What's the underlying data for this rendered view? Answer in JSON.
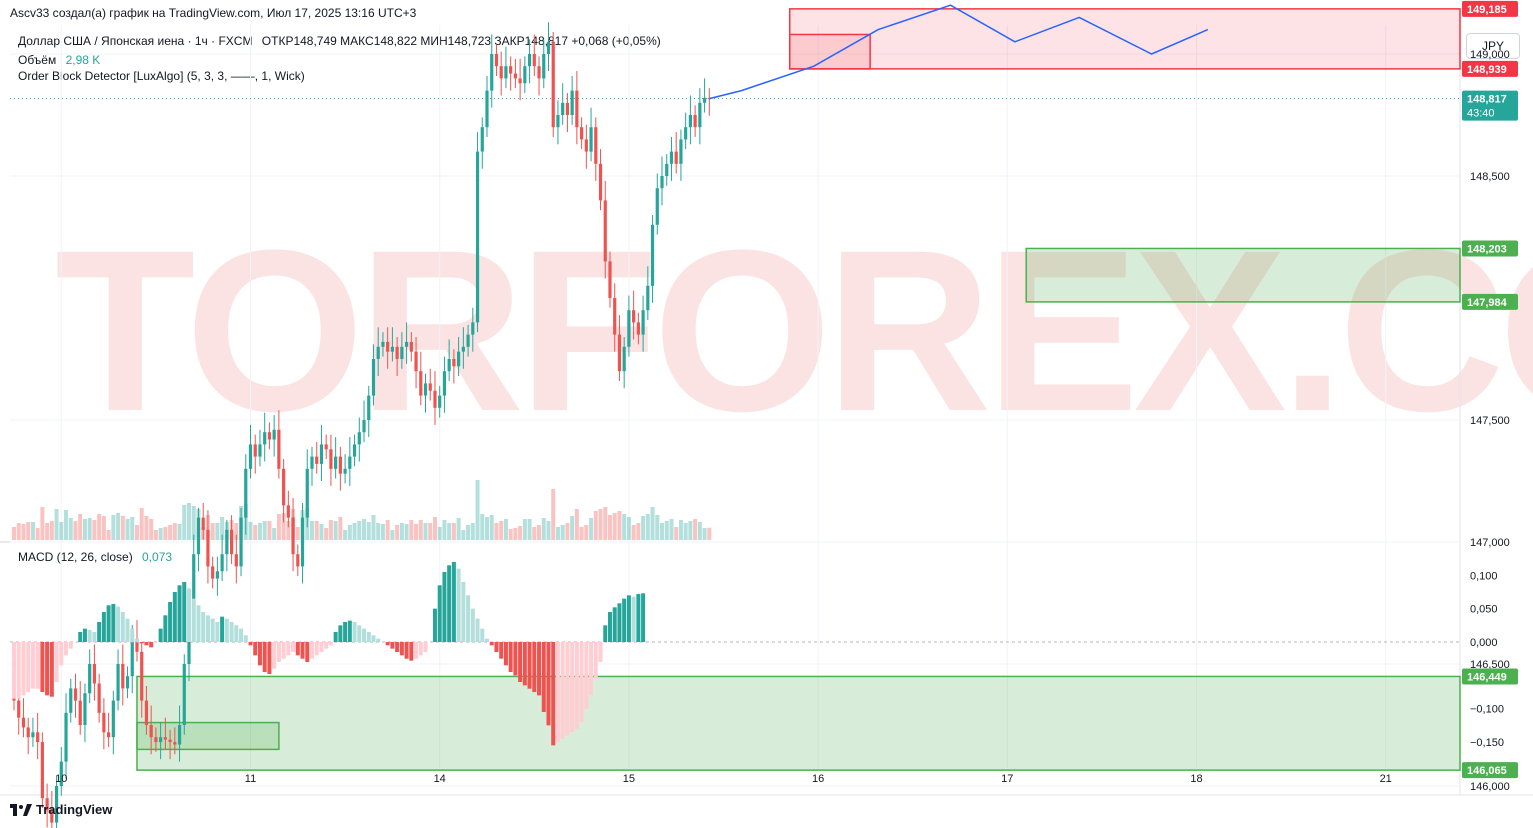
{
  "header": {
    "published": "Ascv33 создал(а) график на TradingView.com, Июл 17, 2025 13:16 UTC+3",
    "symbol": "Доллар США / Японская иена · 1ч · FXCM",
    "ohlc": "ОТКР148,749  МАКС148,822  МИН148,723  ЗАКР148,817  +0,068 (+0,05%)",
    "volume_label": "Объём",
    "volume_value": "2,98 K",
    "indicator": "Order Block Detector [LuxAlgo] (5, 3, 3, ——, 1, Wick)",
    "currency": "JPY"
  },
  "macd": {
    "label": "MACD (12, 26, close)",
    "value": "0,073"
  },
  "watermark": "TORFOREX.COM",
  "brand": "TradingView",
  "colors": {
    "up": "#26a69a",
    "down": "#ef5350",
    "up_light": "#b2dfdb",
    "down_light": "#ffcdd2",
    "forecast": "#2962ff",
    "resist": "#f23645",
    "support": "#4caf50"
  },
  "chart_data": {
    "type": "candlestick",
    "x_ticks": [
      "10",
      "11",
      "14",
      "15",
      "16",
      "17",
      "18",
      "21"
    ],
    "x_tick_index": [
      10,
      50,
      90,
      130,
      170,
      210,
      250,
      290
    ],
    "y_ticks": [
      {
        "v": 149.0,
        "t": "149,000"
      },
      {
        "v": 148.5,
        "t": "148,500"
      },
      {
        "v": 147.5,
        "t": "147,500"
      },
      {
        "v": 147.0,
        "t": "147,000"
      },
      {
        "v": 146.5,
        "t": "146,500"
      },
      {
        "v": 146.0,
        "t": "146,000"
      }
    ],
    "price_labels": [
      {
        "v": 149.185,
        "t": "149,185",
        "kind": "resist"
      },
      {
        "v": 148.939,
        "t": "148,939",
        "kind": "resist"
      },
      {
        "v": 148.817,
        "t": "148,817",
        "sub": "43:40",
        "kind": "last"
      },
      {
        "v": 148.203,
        "t": "148,203",
        "kind": "support"
      },
      {
        "v": 147.984,
        "t": "147,984",
        "kind": "support"
      },
      {
        "v": 146.449,
        "t": "146,449",
        "kind": "support"
      },
      {
        "v": 146.065,
        "t": "146,065",
        "kind": "support"
      }
    ],
    "order_blocks": [
      {
        "type": "bearish",
        "top": 149.185,
        "bottom": 148.939,
        "from": 164,
        "to": 310
      },
      {
        "type": "bearish",
        "top": 149.08,
        "bottom": 148.939,
        "from": 164,
        "to": 181
      },
      {
        "type": "bullish",
        "top": 148.203,
        "bottom": 147.984,
        "from": 214,
        "to": 310
      },
      {
        "type": "bullish",
        "top": 146.449,
        "bottom": 146.065,
        "from": 26,
        "to": 310
      },
      {
        "type": "bullish",
        "top": 146.26,
        "bottom": 146.15,
        "from": 26,
        "to": 56
      }
    ],
    "close": [
      146.35,
      146.28,
      146.24,
      146.2,
      146.22,
      146.18,
      145.95,
      145.9,
      145.85,
      146.0,
      146.1,
      146.3,
      146.4,
      146.35,
      146.25,
      146.38,
      146.5,
      146.42,
      146.3,
      146.22,
      146.2,
      146.35,
      146.5,
      146.4,
      146.45,
      146.6,
      146.55,
      146.35,
      146.25,
      146.2,
      146.18,
      146.2,
      146.19,
      146.18,
      146.17,
      146.25,
      146.5,
      146.75,
      146.95,
      147.1,
      147.05,
      146.9,
      146.85,
      146.88,
      146.95,
      147.05,
      146.95,
      146.9,
      147.1,
      147.3,
      147.4,
      147.35,
      147.4,
      147.45,
      147.42,
      147.46,
      147.3,
      147.15,
      147.1,
      146.95,
      146.9,
      147.1,
      147.3,
      147.35,
      147.32,
      147.4,
      147.38,
      147.3,
      147.35,
      147.28,
      147.3,
      147.35,
      147.4,
      147.45,
      147.5,
      147.6,
      147.75,
      147.8,
      147.82,
      147.78,
      147.8,
      147.75,
      147.8,
      147.82,
      147.78,
      147.7,
      147.6,
      147.65,
      147.62,
      147.55,
      147.6,
      147.7,
      147.75,
      147.72,
      147.78,
      147.8,
      147.85,
      147.9,
      148.6,
      148.7,
      148.85,
      149.0,
      148.95,
      148.9,
      148.95,
      148.92,
      148.9,
      148.88,
      148.95,
      149.0,
      148.95,
      148.9,
      149.0,
      149.05,
      148.7,
      148.75,
      148.8,
      148.75,
      148.85,
      148.7,
      148.65,
      148.6,
      148.7,
      148.55,
      148.4,
      148.15,
      148.0,
      147.85,
      147.7,
      147.8,
      147.95,
      147.9,
      147.85,
      147.95,
      148.05,
      148.3,
      148.45,
      148.5,
      148.55,
      148.6,
      148.55,
      148.65,
      148.7,
      148.75,
      148.7,
      148.8,
      148.82,
      148.817
    ],
    "macd_hist": [
      -0.085,
      -0.085,
      -0.08,
      -0.075,
      -0.07,
      -0.07,
      -0.075,
      -0.08,
      -0.082,
      -0.06,
      -0.035,
      -0.02,
      -0.01,
      0.0,
      0.015,
      0.02,
      0.018,
      0.015,
      0.03,
      0.045,
      0.055,
      0.057,
      0.053,
      0.045,
      0.035,
      0.02,
      0.005,
      -0.002,
      -0.005,
      -0.008,
      0.0,
      0.02,
      0.04,
      0.06,
      0.075,
      0.085,
      0.09,
      0.08,
      0.065,
      0.055,
      0.045,
      0.04,
      0.035,
      0.03,
      0.038,
      0.035,
      0.03,
      0.025,
      0.02,
      0.01,
      -0.005,
      -0.02,
      -0.035,
      -0.045,
      -0.048,
      -0.04,
      -0.03,
      -0.025,
      -0.02,
      -0.015,
      -0.02,
      -0.025,
      -0.03,
      -0.025,
      -0.02,
      -0.015,
      -0.01,
      -0.005,
      0.015,
      0.025,
      0.03,
      0.032,
      0.03,
      0.025,
      0.02,
      0.015,
      0.01,
      0.005,
      0.0,
      -0.005,
      -0.01,
      -0.015,
      -0.02,
      -0.025,
      -0.028,
      -0.025,
      -0.02,
      -0.015,
      0.0,
      0.05,
      0.085,
      0.105,
      0.115,
      0.12,
      0.11,
      0.09,
      0.07,
      0.05,
      0.035,
      0.02,
      0.005,
      -0.005,
      -0.015,
      -0.025,
      -0.035,
      -0.045,
      -0.05,
      -0.06,
      -0.065,
      -0.07,
      -0.075,
      -0.08,
      -0.105,
      -0.125,
      -0.155,
      -0.15,
      -0.145,
      -0.14,
      -0.135,
      -0.13,
      -0.12,
      -0.1,
      -0.08,
      -0.055,
      -0.03,
      0.025,
      0.045,
      0.052,
      0.058,
      0.065,
      0.07,
      0.068,
      0.072,
      0.073
    ]
  }
}
